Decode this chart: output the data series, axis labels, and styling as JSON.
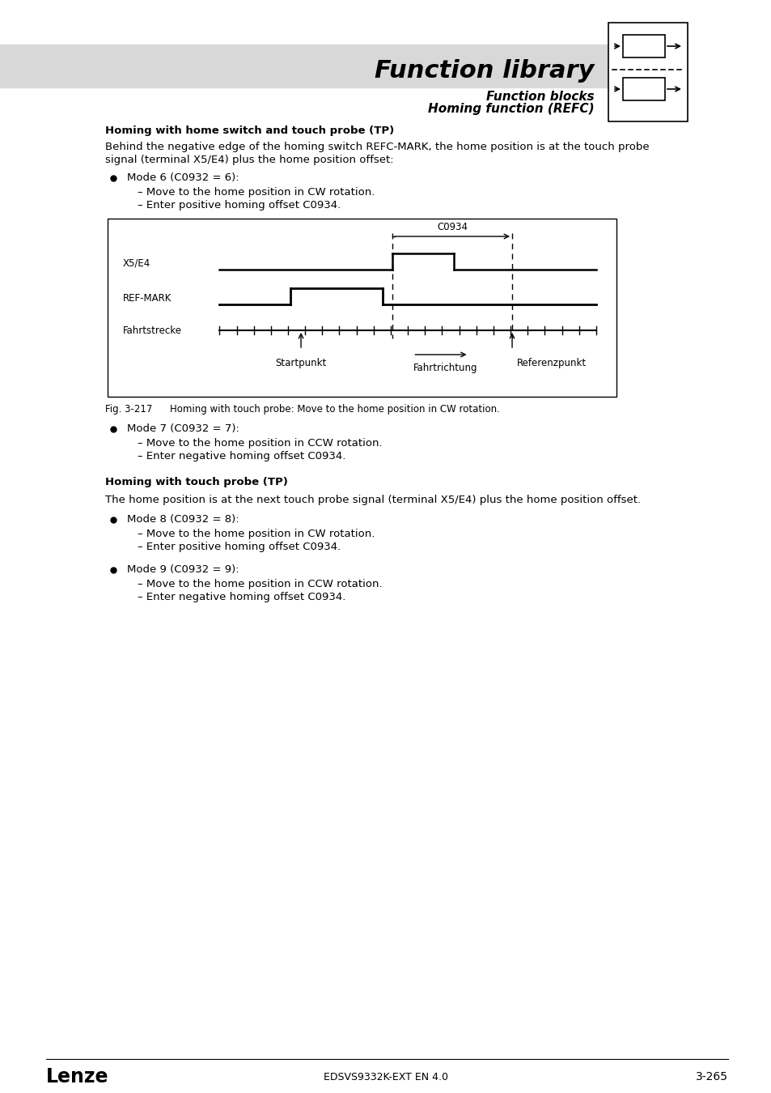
{
  "page_bg": "#ffffff",
  "header_bg": "#d8d8d8",
  "title_text": "Function library",
  "subtitle1": "Function blocks",
  "subtitle2": "Homing function (REFC)",
  "section_title": "Homing with home switch and touch probe (TP)",
  "body_text1a": "Behind the negative edge of the homing switch REFC-MARK, the home position is at the touch probe",
  "body_text1b": "signal (terminal X5/E4) plus the home position offset:",
  "bullet1_main": "Mode 6 (C0932 = 6):",
  "bullet1_sub1": "– Move to the home position in CW rotation.",
  "bullet1_sub2": "– Enter positive homing offset C0934.",
  "fig_label": "Fig. 3-217",
  "fig_caption": "Homing with touch probe: Move to the home position in CW rotation.",
  "bullet2_main": "Mode 7 (C0932 = 7):",
  "bullet2_sub1": "– Move to the home position in CCW rotation.",
  "bullet2_sub2": "– Enter negative homing offset C0934.",
  "section_title2": "Homing with touch probe (TP)",
  "body_text2": "The home position is at the next touch probe signal (terminal X5/E4) plus the home position offset.",
  "bullet3_main": "Mode 8 (C0932 = 8):",
  "bullet3_sub1": "– Move to the home position in CW rotation.",
  "bullet3_sub2": "– Enter positive homing offset C0934.",
  "bullet4_main": "Mode 9 (C0932 = 9):",
  "bullet4_sub1": "– Move to the home position in CCW rotation.",
  "bullet4_sub2": "– Enter negative homing offset C0934.",
  "footer_left": "Lenze",
  "footer_center": "EDSVS9332K-EXT EN 4.0",
  "footer_right": "3-265",
  "diagram_label_x5e4": "X5/E4",
  "diagram_label_refmark": "REF-MARK",
  "diagram_label_fahrtstrecke": "Fahrtstrecke",
  "diagram_label_startpunkt": "Startpunkt",
  "diagram_label_fahrtrichtung": "Fahrtrichtung",
  "diagram_label_referenzpunkt": "Referenzpunkt",
  "diagram_label_c0934": "C0934"
}
